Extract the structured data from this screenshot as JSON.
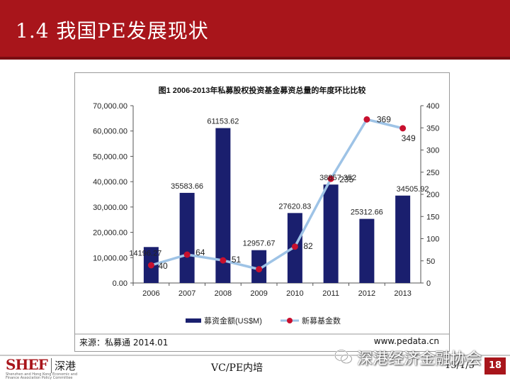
{
  "slide": {
    "title": "1.4 我国PE发展现状",
    "source": "来源：私募通 2014.01",
    "site": "www.pedata.cn",
    "course": "VC/PE内培",
    "date": "15/1/5",
    "page": "18",
    "logo_mark_a": "SHEF",
    "logo_cn": "深港",
    "logo_sub": "Shenzhen and Hong Kong Economic and Finance Association Policy Committee",
    "watermark": "深港经济金融协会"
  },
  "chart_data": {
    "type": "bar",
    "title": "图1 2006-2013年私募股权投资基金募资总量的年度环比比较",
    "categories": [
      "2006",
      "2007",
      "2008",
      "2009",
      "2010",
      "2011",
      "2012",
      "2013"
    ],
    "series": [
      {
        "name": "募资金额(US$M)",
        "type": "bar",
        "axis": "left",
        "values": [
          14196.27,
          35583.66,
          61153.62,
          12957.67,
          27620.83,
          38857.352,
          25312.66,
          34505.92
        ],
        "labels": [
          "14196.27",
          "35583.66",
          "61153.62",
          "12957.67",
          "27620.83",
          "38857.352",
          "25312.66",
          "34505.92"
        ],
        "color": "#1a1f6e"
      },
      {
        "name": "新募基金数",
        "type": "line",
        "axis": "right",
        "values": [
          40,
          64,
          51,
          31,
          82,
          235,
          369,
          349
        ],
        "labels": [
          "40",
          "64",
          "51",
          "",
          "82",
          "235",
          "369",
          "349"
        ],
        "color": "#9ec3e6",
        "marker_color": "#c8102e"
      }
    ],
    "y_left": {
      "min": 0,
      "max": 70000,
      "ticks": [
        0,
        10000,
        20000,
        30000,
        40000,
        50000,
        60000,
        70000
      ],
      "tick_labels": [
        "0.00",
        "10,000.00",
        "20,000.00",
        "30,000.00",
        "40,000.00",
        "50,000.00",
        "60,000.00",
        "70,000.00"
      ]
    },
    "y_right": {
      "min": 0,
      "max": 400,
      "ticks": [
        0,
        50,
        100,
        150,
        200,
        250,
        300,
        350,
        400
      ],
      "tick_labels": [
        "0",
        "50",
        "100",
        "150",
        "200",
        "250",
        "300",
        "350",
        "400"
      ]
    },
    "grid": false,
    "legend": "bottom"
  }
}
